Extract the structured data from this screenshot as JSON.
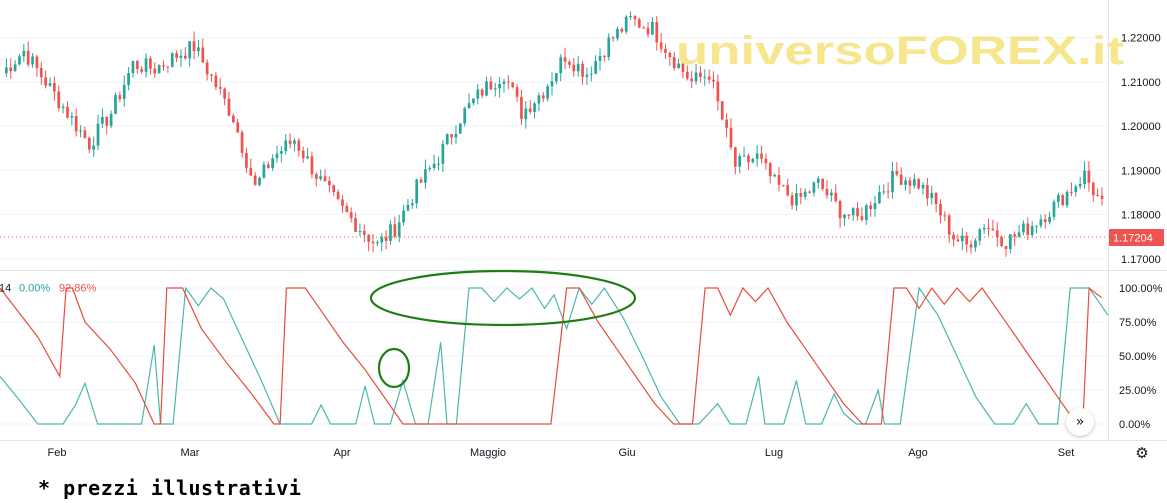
{
  "watermark": "universoFOREX.it",
  "footnote": "* prezzi illustrativi",
  "icons": {
    "scroll": "double-chevron-right-icon",
    "settings": "gear-icon"
  },
  "colors": {
    "up": "#26a69a",
    "down": "#ef5350",
    "aroon_up": "#4db6ac",
    "aroon_down": "#e74c3c",
    "annotation": "#1e7d14",
    "price_label_bg": "#ef5350",
    "watermark": "#f5e27a"
  },
  "chart_data": [
    {
      "type": "candlestick",
      "y_tick_labels": [
        "1.22000",
        "1.21000",
        "1.20000",
        "1.19000",
        "1.18000",
        "1.17000"
      ],
      "y_ticks": [
        1.22,
        1.21,
        1.2,
        1.19,
        1.18,
        1.17
      ],
      "ylim": [
        1.1675,
        1.2285
      ],
      "last_price_label": "1.17204",
      "last_price": 1.17204,
      "x_tick_labels": [
        "Feb",
        "Mar",
        "Apr",
        "Maggio",
        "Giu",
        "Lug",
        "Ago",
        "Set"
      ],
      "close_path": [
        [
          0,
          1.212
        ],
        [
          5,
          1.217
        ],
        [
          10,
          1.21
        ],
        [
          15,
          1.203
        ],
        [
          20,
          1.196
        ],
        [
          25,
          1.203
        ],
        [
          30,
          1.214
        ],
        [
          35,
          1.213
        ],
        [
          40,
          1.216
        ],
        [
          44,
          1.218
        ],
        [
          48,
          1.211
        ],
        [
          53,
          1.202
        ],
        [
          58,
          1.186
        ],
        [
          62,
          1.193
        ],
        [
          67,
          1.197
        ],
        [
          72,
          1.189
        ],
        [
          77,
          1.182
        ],
        [
          82,
          1.177
        ],
        [
          86,
          1.173
        ],
        [
          90,
          1.177
        ],
        [
          95,
          1.186
        ],
        [
          100,
          1.193
        ],
        [
          105,
          1.202
        ],
        [
          110,
          1.208
        ],
        [
          115,
          1.212
        ],
        [
          119,
          1.203
        ],
        [
          124,
          1.208
        ],
        [
          129,
          1.216
        ],
        [
          134,
          1.212
        ],
        [
          139,
          1.219
        ],
        [
          144,
          1.224
        ],
        [
          149,
          1.222
        ],
        [
          154,
          1.215
        ],
        [
          158,
          1.21
        ],
        [
          162,
          1.212
        ],
        [
          164,
          1.205
        ],
        [
          168,
          1.191
        ],
        [
          173,
          1.193
        ],
        [
          177,
          1.187
        ],
        [
          182,
          1.183
        ],
        [
          187,
          1.187
        ],
        [
          192,
          1.181
        ],
        [
          196,
          1.179
        ],
        [
          201,
          1.185
        ],
        [
          205,
          1.189
        ],
        [
          210,
          1.187
        ],
        [
          214,
          1.182
        ],
        [
          218,
          1.175
        ],
        [
          221,
          1.173
        ],
        [
          225,
          1.178
        ],
        [
          230,
          1.174
        ],
        [
          235,
          1.177
        ],
        [
          240,
          1.181
        ],
        [
          244,
          1.185
        ],
        [
          248,
          1.189
        ],
        [
          252,
          1.182
        ]
      ]
    },
    {
      "type": "line",
      "indicator": "Aroon",
      "legend_partial": "14",
      "series": [
        {
          "value_label": "0.00%",
          "value": 0.0
        },
        {
          "value_label": "92.86%",
          "value": 92.86
        }
      ],
      "y_tick_labels": [
        "100.00%",
        "75.00%",
        "50.00%",
        "25.00%",
        "0.00%"
      ],
      "y_ticks": [
        100,
        75,
        50,
        25,
        0
      ],
      "ylim": [
        0,
        100
      ],
      "up_points": [
        [
          0,
          35
        ],
        [
          6,
          18
        ],
        [
          12,
          0
        ],
        [
          20,
          0
        ],
        [
          24,
          14
        ],
        [
          27,
          30
        ],
        [
          31,
          0
        ],
        [
          45,
          0
        ],
        [
          49,
          58
        ],
        [
          51,
          0
        ],
        [
          55,
          0
        ],
        [
          59,
          100
        ],
        [
          63,
          87
        ],
        [
          67,
          100
        ],
        [
          71,
          92
        ],
        [
          77,
          62
        ],
        [
          83,
          32
        ],
        [
          89,
          0
        ],
        [
          99,
          0
        ],
        [
          102,
          14
        ],
        [
          105,
          0
        ],
        [
          113,
          0
        ],
        [
          116,
          28
        ],
        [
          119,
          0
        ],
        [
          124,
          0
        ],
        [
          128,
          32
        ],
        [
          132,
          0
        ],
        [
          136,
          0
        ],
        [
          140,
          60
        ],
        [
          142,
          0
        ],
        [
          145,
          0
        ],
        [
          149,
          100
        ],
        [
          153,
          100
        ],
        [
          157,
          90
        ],
        [
          161,
          100
        ],
        [
          165,
          92
        ],
        [
          169,
          100
        ],
        [
          173,
          85
        ],
        [
          176,
          95
        ],
        [
          180,
          70
        ],
        [
          184,
          100
        ],
        [
          188,
          88
        ],
        [
          192,
          100
        ],
        [
          198,
          78
        ],
        [
          204,
          50
        ],
        [
          210,
          20
        ],
        [
          216,
          0
        ],
        [
          222,
          0
        ],
        [
          228,
          15
        ],
        [
          232,
          0
        ],
        [
          237,
          0
        ],
        [
          241,
          35
        ],
        [
          243,
          0
        ],
        [
          249,
          0
        ],
        [
          253,
          32
        ],
        [
          256,
          0
        ],
        [
          261,
          0
        ],
        [
          265,
          22
        ],
        [
          268,
          8
        ],
        [
          272,
          0
        ],
        [
          275,
          0
        ],
        [
          279,
          25
        ],
        [
          281,
          0
        ],
        [
          286,
          0
        ],
        [
          292,
          100
        ],
        [
          298,
          80
        ],
        [
          304,
          50
        ],
        [
          310,
          20
        ],
        [
          316,
          0
        ],
        [
          322,
          0
        ],
        [
          326,
          15
        ],
        [
          330,
          0
        ],
        [
          336,
          0
        ],
        [
          340,
          100
        ],
        [
          346,
          100
        ],
        [
          352,
          80
        ]
      ],
      "down_points": [
        [
          0,
          100
        ],
        [
          6,
          82
        ],
        [
          12,
          64
        ],
        [
          19,
          35
        ],
        [
          21,
          100
        ],
        [
          23,
          100
        ],
        [
          27,
          75
        ],
        [
          35,
          55
        ],
        [
          43,
          30
        ],
        [
          49,
          0
        ],
        [
          51,
          0
        ],
        [
          53,
          100
        ],
        [
          58,
          100
        ],
        [
          64,
          70
        ],
        [
          72,
          45
        ],
        [
          80,
          22
        ],
        [
          87,
          0
        ],
        [
          89,
          0
        ],
        [
          91,
          100
        ],
        [
          97,
          100
        ],
        [
          103,
          80
        ],
        [
          109,
          60
        ],
        [
          116,
          40
        ],
        [
          122,
          20
        ],
        [
          128,
          0
        ],
        [
          134,
          0
        ],
        [
          138,
          0
        ],
        [
          145,
          0
        ],
        [
          149,
          0
        ],
        [
          155,
          0
        ],
        [
          160,
          0
        ],
        [
          165,
          0
        ],
        [
          170,
          0
        ],
        [
          175,
          0
        ],
        [
          180,
          100
        ],
        [
          184,
          100
        ],
        [
          190,
          75
        ],
        [
          196,
          55
        ],
        [
          202,
          35
        ],
        [
          208,
          15
        ],
        [
          214,
          0
        ],
        [
          220,
          0
        ],
        [
          224,
          100
        ],
        [
          228,
          100
        ],
        [
          232,
          80
        ],
        [
          236,
          100
        ],
        [
          240,
          90
        ],
        [
          244,
          100
        ],
        [
          250,
          75
        ],
        [
          256,
          55
        ],
        [
          262,
          35
        ],
        [
          268,
          15
        ],
        [
          274,
          0
        ],
        [
          280,
          0
        ],
        [
          284,
          100
        ],
        [
          288,
          100
        ],
        [
          292,
          85
        ],
        [
          296,
          100
        ],
        [
          300,
          88
        ],
        [
          304,
          100
        ],
        [
          308,
          90
        ],
        [
          312,
          100
        ],
        [
          318,
          80
        ],
        [
          324,
          60
        ],
        [
          330,
          40
        ],
        [
          336,
          20
        ],
        [
          342,
          0
        ],
        [
          344,
          0
        ],
        [
          346,
          100
        ],
        [
          350,
          92.86
        ]
      ]
    }
  ]
}
